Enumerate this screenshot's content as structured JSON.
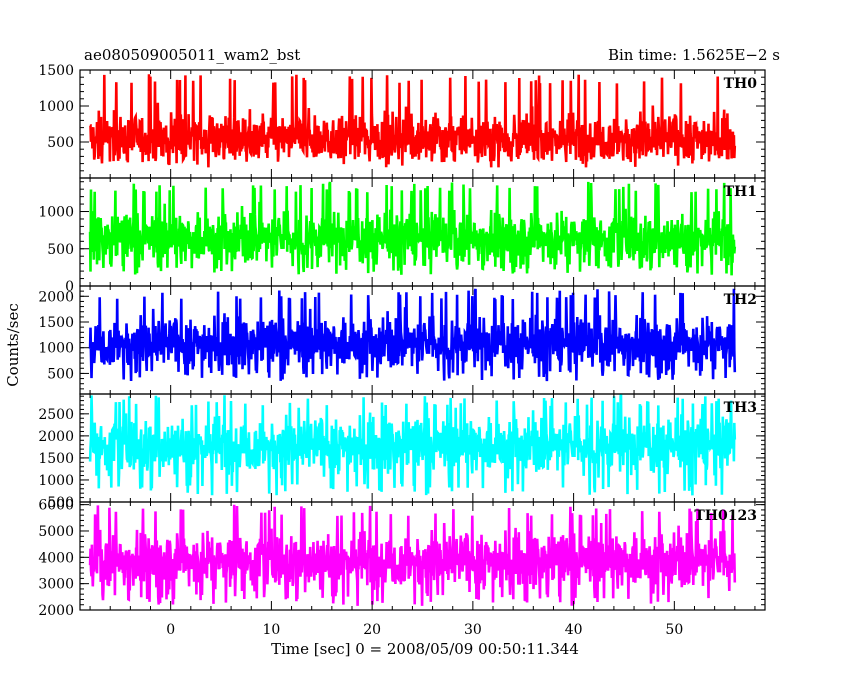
{
  "chart_data": {
    "type": "line",
    "title_left": "ae080509005011_wam2_bst",
    "title_right": "Bin time: 1.5625E−2 s",
    "xlabel": "Time [sec] 0 = 2008/05/09 00:50:11.344",
    "ylabel": "Counts/sec",
    "xlim": [
      -9,
      59
    ],
    "x_range_data": [
      -8,
      56
    ],
    "bin_time": 0.015625,
    "x_ticks": [
      0,
      10,
      20,
      30,
      40,
      50
    ],
    "x_minor_step": 2,
    "panels": [
      {
        "name": "TH0",
        "color": "#ff0000",
        "ylim": [
          0,
          1500
        ],
        "y_ticks": [
          500,
          1000,
          1500
        ],
        "y_minor_step": 100,
        "mean": 560,
        "low": 220,
        "high": 1450
      },
      {
        "name": "TH1",
        "color": "#00ff00",
        "ylim": [
          0,
          1450
        ],
        "y_ticks": [
          0,
          500,
          1000
        ],
        "y_minor_step": 100,
        "mean": 650,
        "low": 150,
        "high": 1400
      },
      {
        "name": "TH2",
        "color": "#0000ff",
        "ylim": [
          100,
          2200
        ],
        "y_ticks": [
          500,
          1000,
          1500,
          2000
        ],
        "y_minor_step": 100,
        "mean": 1100,
        "low": 350,
        "high": 2150
      },
      {
        "name": "TH3",
        "color": "#00ffff",
        "ylim": [
          500,
          2950
        ],
        "y_ticks": [
          500,
          1000,
          1500,
          2000,
          2500
        ],
        "y_minor_step": 100,
        "mean": 1800,
        "low": 650,
        "high": 2950
      },
      {
        "name": "TH0123",
        "color": "#ff00ff",
        "ylim": [
          2000,
          6100
        ],
        "y_ticks": [
          2000,
          3000,
          4000,
          5000,
          6000
        ],
        "y_minor_step": 200,
        "mean": 3900,
        "low": 2150,
        "high": 6000
      }
    ]
  }
}
